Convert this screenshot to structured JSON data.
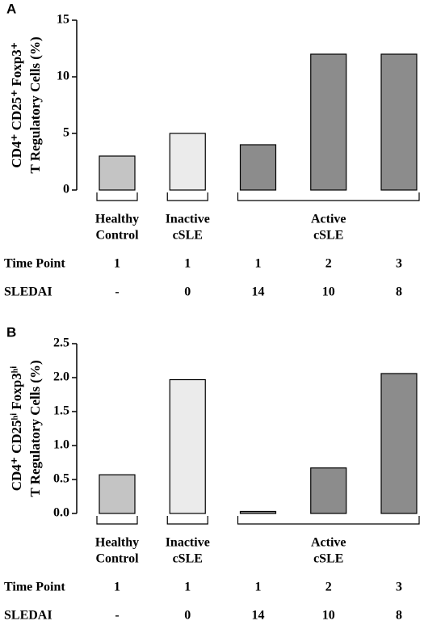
{
  "chart_data": [
    {
      "type": "bar",
      "panel": "A",
      "y_label": [
        "CD4⁺ CD25⁺ Foxp3⁺",
        "T Regulatory Cells (%)"
      ],
      "categories": [
        [
          "Healthy",
          "Control"
        ],
        [
          "Inactive",
          "cSLE"
        ],
        [
          "Active",
          "cSLE"
        ],
        [
          "Active",
          "cSLE"
        ],
        [
          "Active",
          "cSLE"
        ]
      ],
      "values": [
        3,
        5,
        4,
        12,
        12
      ],
      "colors": [
        "#c4c4c4",
        "#ebebeb",
        "#8c8c8c",
        "#8c8c8c",
        "#8c8c8c"
      ],
      "ylim": [
        0,
        15
      ],
      "yticks": [
        0,
        5,
        10,
        15
      ],
      "table": {
        "rows": [
          {
            "label": "Time Point",
            "cells": [
              "1",
              "1",
              "1",
              "2",
              "3"
            ]
          },
          {
            "label": "SLEDAI",
            "cells": [
              "-",
              "0",
              "14",
              "10",
              "8"
            ]
          }
        ]
      }
    },
    {
      "type": "bar",
      "panel": "B",
      "y_label": [
        "CD4⁺ CD25ʰⁱ Foxp3ʰⁱ",
        "T Regulatory Cells (%)"
      ],
      "categories": [
        [
          "Healthy",
          "Control"
        ],
        [
          "Inactive",
          "cSLE"
        ],
        [
          "Active",
          "cSLE"
        ],
        [
          "Active",
          "cSLE"
        ],
        [
          "Active",
          "cSLE"
        ]
      ],
      "values": [
        0.57,
        1.97,
        0.03,
        0.67,
        2.06
      ],
      "colors": [
        "#c4c4c4",
        "#ebebeb",
        "#8c8c8c",
        "#8c8c8c",
        "#8c8c8c"
      ],
      "ylim": [
        0,
        2.5
      ],
      "yticks": [
        {
          "value": 0,
          "label": "0.0"
        },
        0.5,
        {
          "value": 1,
          "label": "1.0"
        },
        1.5,
        {
          "value": 2,
          "label": "2.0"
        },
        2.5
      ],
      "table": {
        "rows": [
          {
            "label": "Time Point",
            "cells": [
              "1",
              "1",
              "1",
              "2",
              "3"
            ]
          },
          {
            "label": "SLEDAI",
            "cells": [
              "-",
              "0",
              "14",
              "10",
              "8"
            ]
          }
        ]
      }
    }
  ]
}
